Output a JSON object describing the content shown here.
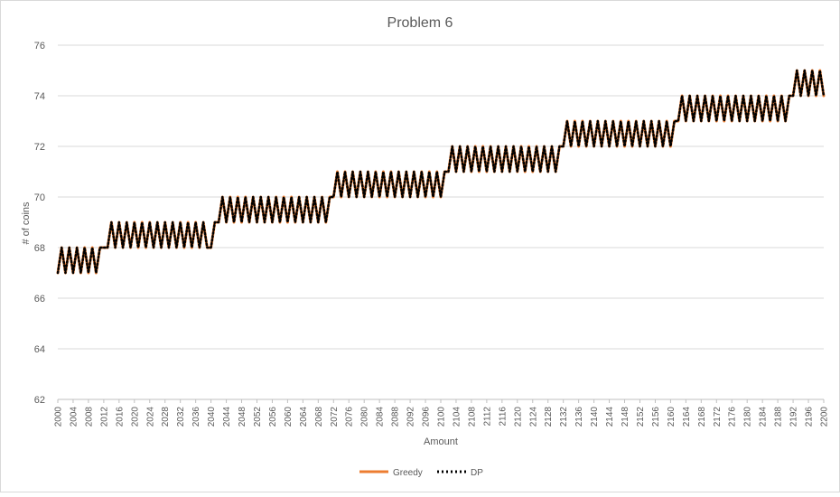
{
  "chart_data": {
    "type": "line",
    "title": "Problem 6",
    "xlabel": "Amount",
    "ylabel": "# of coins",
    "x_range": [
      2000,
      2200
    ],
    "x_tick_labels": [
      "2000",
      "2004",
      "2008",
      "2012",
      "2016",
      "2020",
      "2024",
      "2028",
      "2032",
      "2036",
      "2040",
      "2044",
      "2048",
      "2052",
      "2056",
      "2060",
      "2064",
      "2068",
      "2072",
      "2076",
      "2080",
      "2084",
      "2088",
      "2092",
      "2096",
      "2100",
      "2104",
      "2108",
      "2112",
      "2116",
      "2120",
      "2124",
      "2128",
      "2132",
      "2136",
      "2140",
      "2144",
      "2148",
      "2152",
      "2156",
      "2160",
      "2164",
      "2168",
      "2172",
      "2176",
      "2180",
      "2184",
      "2188",
      "2192",
      "2196",
      "2200"
    ],
    "ylim": [
      62,
      76
    ],
    "y_ticks": [
      "62",
      "64",
      "66",
      "68",
      "70",
      "72",
      "74",
      "76"
    ],
    "grid": "horizontal",
    "legend_position": "bottom",
    "series": [
      {
        "name": "Greedy",
        "color": "#ED7D31",
        "style": "solid",
        "values": [
          67,
          68,
          67,
          68,
          67,
          68,
          67,
          68,
          67,
          68,
          67,
          68,
          68,
          68,
          69,
          68,
          69,
          68,
          69,
          68,
          69,
          68,
          69,
          68,
          69,
          68,
          69,
          68,
          69,
          68,
          69,
          68,
          69,
          68,
          69,
          68,
          69,
          68,
          69,
          68,
          68,
          69,
          69,
          70,
          69,
          70,
          69,
          70,
          69,
          70,
          69,
          70,
          69,
          70,
          69,
          70,
          69,
          70,
          69,
          70,
          69,
          70,
          69,
          70,
          69,
          70,
          69,
          70,
          69,
          70,
          69,
          70,
          70,
          71,
          70,
          71,
          70,
          71,
          70,
          71,
          70,
          71,
          70,
          71,
          70,
          71,
          70,
          71,
          70,
          71,
          70,
          71,
          70,
          71,
          70,
          71,
          70,
          71,
          70,
          71,
          70,
          71,
          71,
          72,
          71,
          72,
          71,
          72,
          71,
          72,
          71,
          72,
          71,
          72,
          71,
          72,
          71,
          72,
          71,
          72,
          71,
          72,
          71,
          72,
          71,
          72,
          71,
          72,
          71,
          72,
          71,
          72,
          72,
          73,
          72,
          73,
          72,
          73,
          72,
          73,
          72,
          73,
          72,
          73,
          72,
          73,
          72,
          73,
          72,
          73,
          72,
          73,
          72,
          73,
          72,
          73,
          72,
          73,
          72,
          73,
          72,
          73,
          73,
          74,
          73,
          74,
          73,
          74,
          73,
          74,
          73,
          74,
          73,
          74,
          73,
          74,
          73,
          74,
          73,
          74,
          73,
          74,
          73,
          74,
          73,
          74,
          73,
          74,
          73,
          74,
          73,
          74,
          74,
          75,
          74,
          75,
          74,
          75,
          74,
          75,
          74
        ]
      },
      {
        "name": "DP",
        "color": "#000000",
        "style": "dotted",
        "values": [
          67,
          68,
          67,
          68,
          67,
          68,
          67,
          68,
          67,
          68,
          67,
          68,
          68,
          68,
          69,
          68,
          69,
          68,
          69,
          68,
          69,
          68,
          69,
          68,
          69,
          68,
          69,
          68,
          69,
          68,
          69,
          68,
          69,
          68,
          69,
          68,
          69,
          68,
          69,
          68,
          68,
          69,
          69,
          70,
          69,
          70,
          69,
          70,
          69,
          70,
          69,
          70,
          69,
          70,
          69,
          70,
          69,
          70,
          69,
          70,
          69,
          70,
          69,
          70,
          69,
          70,
          69,
          70,
          69,
          70,
          69,
          70,
          70,
          71,
          70,
          71,
          70,
          71,
          70,
          71,
          70,
          71,
          70,
          71,
          70,
          71,
          70,
          71,
          70,
          71,
          70,
          71,
          70,
          71,
          70,
          71,
          70,
          71,
          70,
          71,
          70,
          71,
          71,
          72,
          71,
          72,
          71,
          72,
          71,
          72,
          71,
          72,
          71,
          72,
          71,
          72,
          71,
          72,
          71,
          72,
          71,
          72,
          71,
          72,
          71,
          72,
          71,
          72,
          71,
          72,
          71,
          72,
          72,
          73,
          72,
          73,
          72,
          73,
          72,
          73,
          72,
          73,
          72,
          73,
          72,
          73,
          72,
          73,
          72,
          73,
          72,
          73,
          72,
          73,
          72,
          73,
          72,
          73,
          72,
          73,
          72,
          73,
          73,
          74,
          73,
          74,
          73,
          74,
          73,
          74,
          73,
          74,
          73,
          74,
          73,
          74,
          73,
          74,
          73,
          74,
          73,
          74,
          73,
          74,
          73,
          74,
          73,
          74,
          73,
          74,
          73,
          74,
          74,
          75,
          74,
          75,
          74,
          75,
          74,
          75,
          74
        ]
      }
    ]
  }
}
